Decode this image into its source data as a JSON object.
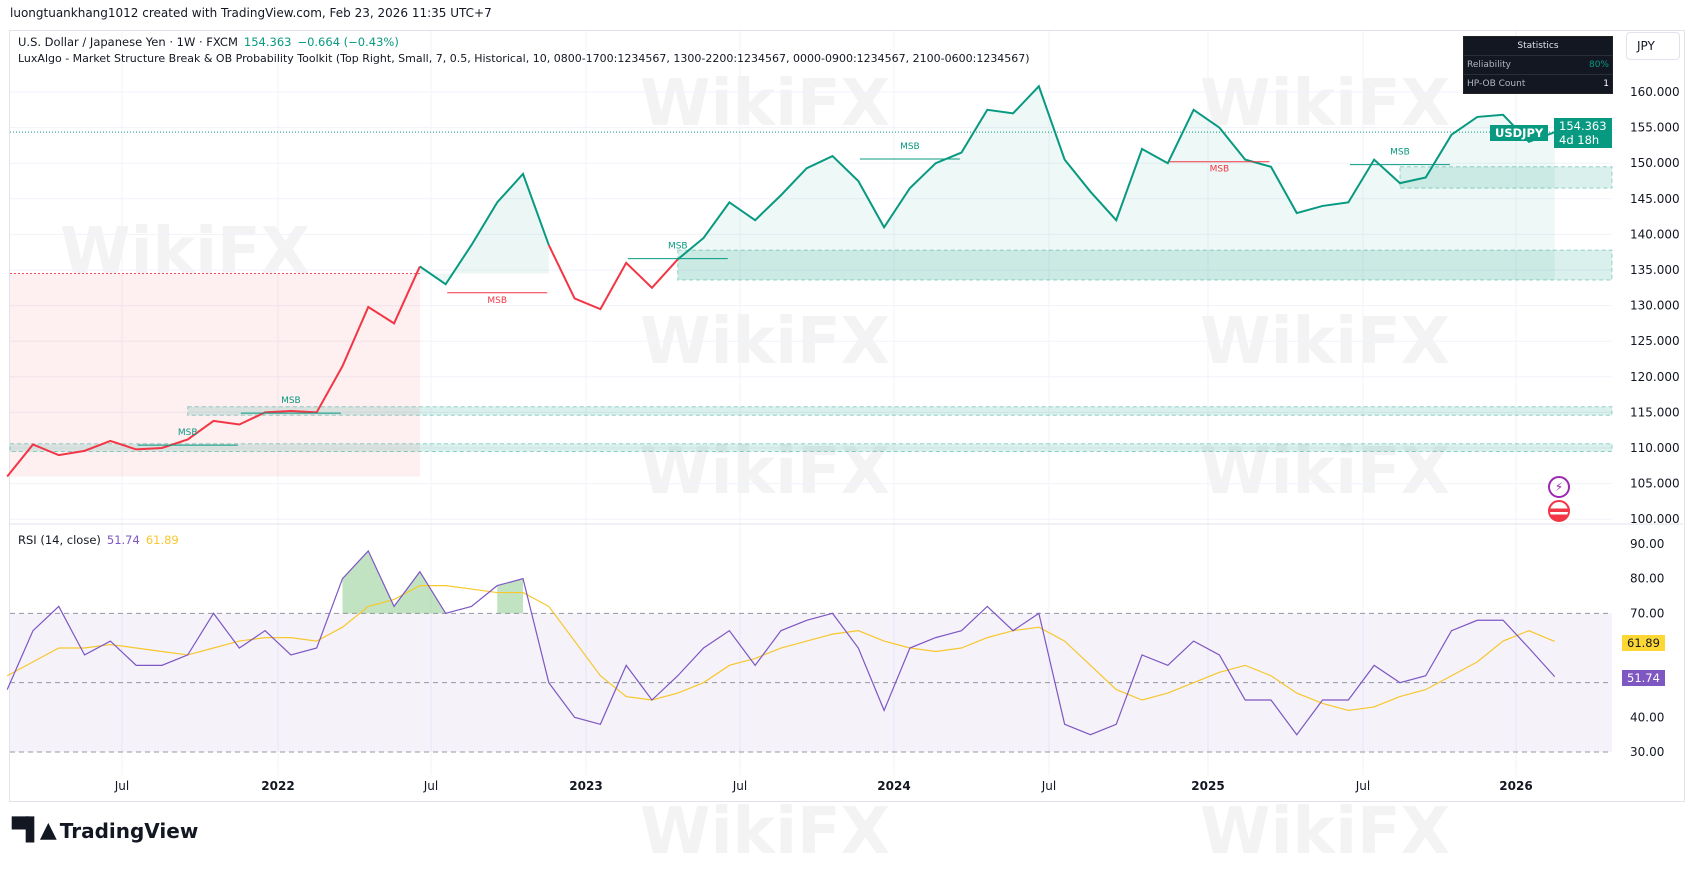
{
  "header": {
    "credit": "luongtuankhang1012 created with TradingView.com, Feb 23, 2026 11:35 UTC+7"
  },
  "legend": {
    "symbol_line": "U.S. Dollar / Japanese Yen · 1W · FXCM",
    "last": "154.363",
    "change": "−0.664 (−0.43%)",
    "indicator": "LuxAlgo - Market Structure Break & OB Probability Toolkit (Top Right, Small, 7, 0.5, Historical, 10, 0800-1700:1234567, 1300-2200:1234567, 0000-0900:1234567, 2100-0600:1234567)"
  },
  "statistics": {
    "title": "Statistics",
    "rows": [
      {
        "label": "Reliability",
        "value": "80%"
      },
      {
        "label": "HP-OB Count",
        "value": "1"
      }
    ]
  },
  "currency_button": "JPY",
  "price_tag": {
    "symbol": "USDJPY",
    "price": "154.363",
    "countdown": "4d 18h"
  },
  "rsi_legend": {
    "label": "RSI (14, close)",
    "rsi": "51.74",
    "ma": "61.89"
  },
  "rsi_tags": {
    "rsi": "51.74",
    "ma": "61.89"
  },
  "brand": "TradingView",
  "watermark": "WikiFX",
  "colors": {
    "bull": "#089981",
    "bear": "#f23645",
    "rsi": "#7e57c2",
    "rsi_ma": "#f7c72d"
  },
  "chart_data": [
    {
      "type": "line",
      "title": "U.S. Dollar / Japanese Yen · 1W · FXCM",
      "y_ticks": [
        "160.000",
        "155.000",
        "150.000",
        "145.000",
        "140.000",
        "135.000",
        "130.000",
        "125.000",
        "120.000",
        "115.000",
        "110.000",
        "105.000",
        "100.000"
      ],
      "ylim": [
        100,
        162
      ],
      "x_ticks": [
        "Jul",
        "2022",
        "Jul",
        "2023",
        "Jul",
        "2024",
        "Jul",
        "2025",
        "Jul",
        "2026"
      ],
      "dates": [
        "2021-02",
        "2021-03",
        "2021-04",
        "2021-05",
        "2021-06",
        "2021-07",
        "2021-08",
        "2021-09",
        "2021-10",
        "2021-11",
        "2021-12",
        "2022-01",
        "2022-02",
        "2022-03",
        "2022-04",
        "2022-05",
        "2022-06",
        "2022-07",
        "2022-08",
        "2022-09",
        "2022-10",
        "2022-11",
        "2022-12",
        "2023-01",
        "2023-02",
        "2023-03",
        "2023-04",
        "2023-05",
        "2023-06",
        "2023-07",
        "2023-08",
        "2023-09",
        "2023-10",
        "2023-11",
        "2023-12",
        "2024-01",
        "2024-02",
        "2024-03",
        "2024-04",
        "2024-05",
        "2024-06",
        "2024-07",
        "2024-08",
        "2024-09",
        "2024-10",
        "2024-11",
        "2024-12",
        "2025-01",
        "2025-02",
        "2025-03",
        "2025-04",
        "2025-05",
        "2025-06",
        "2025-07",
        "2025-08",
        "2025-09",
        "2025-10",
        "2025-11",
        "2025-12",
        "2026-01",
        "2026-02"
      ],
      "values": [
        106.0,
        110.5,
        109.0,
        109.6,
        111.0,
        109.8,
        110.0,
        111.2,
        113.8,
        113.3,
        115.0,
        115.2,
        115.0,
        121.5,
        129.8,
        127.5,
        135.5,
        133.0,
        138.5,
        144.5,
        148.5,
        138.5,
        131.0,
        129.5,
        136.0,
        132.5,
        136.5,
        139.5,
        144.5,
        142.0,
        145.5,
        149.3,
        151.0,
        147.5,
        141.0,
        146.5,
        150.0,
        151.5,
        157.5,
        157.0,
        160.8,
        150.5,
        146.0,
        142.0,
        152.0,
        150.0,
        157.5,
        155.0,
        150.5,
        149.5,
        143.0,
        144.0,
        144.5,
        150.5,
        147.2,
        148.0,
        154.0,
        156.5,
        156.8,
        153.0,
        154.363
      ],
      "trend_segments": [
        {
          "from": "2021-02",
          "to": "2022-06",
          "trend": "bear"
        },
        {
          "from": "2022-06",
          "to": "2022-11",
          "trend": "bull"
        },
        {
          "from": "2022-11",
          "to": "2023-04",
          "trend": "bear"
        },
        {
          "from": "2023-04",
          "to": "2026-02",
          "trend": "bull"
        }
      ],
      "order_blocks": [
        {
          "top": 137.8,
          "bottom": 133.6,
          "from": "2023-04",
          "color": "bull"
        },
        {
          "top": 149.5,
          "bottom": 146.5,
          "from": "2025-08",
          "color": "bull"
        },
        {
          "top": 115.8,
          "bottom": 114.6,
          "from": "2021-09",
          "color": "bull"
        },
        {
          "top": 110.6,
          "bottom": 109.5,
          "from": "2021-02",
          "color": "bull"
        }
      ],
      "bear_zone": {
        "top": 134.5,
        "from": "2021-02",
        "to": "2022-06"
      },
      "msb_labels": [
        {
          "text": "MSB",
          "date": "2021-09",
          "price": 111.8,
          "trend": "bull"
        },
        {
          "text": "MSB",
          "date": "2022-01",
          "price": 116.3,
          "trend": "bull"
        },
        {
          "text": "MSB",
          "date": "2022-09",
          "price": 130.4,
          "trend": "bear"
        },
        {
          "text": "MSB",
          "date": "2023-04",
          "price": 138.0,
          "trend": "bull"
        },
        {
          "text": "MSB",
          "date": "2024-01",
          "price": 152.0,
          "trend": "bull"
        },
        {
          "text": "MSB",
          "date": "2025-01",
          "price": 148.8,
          "trend": "bear"
        },
        {
          "text": "MSB",
          "date": "2025-08",
          "price": 151.2,
          "trend": "bull"
        }
      ],
      "last_price": 154.363
    },
    {
      "type": "line",
      "title": "RSI (14, close)",
      "y_ticks": [
        "90.00",
        "80.00",
        "70.00",
        "40.00",
        "30.00"
      ],
      "ylim": [
        25,
        92
      ],
      "bands": [
        70,
        50,
        30
      ],
      "series": [
        {
          "name": "RSI",
          "values": [
            48,
            65,
            72,
            58,
            62,
            55,
            55,
            58,
            70,
            60,
            65,
            58,
            60,
            80,
            88,
            72,
            82,
            70,
            72,
            78,
            80,
            50,
            40,
            38,
            55,
            45,
            52,
            60,
            65,
            55,
            65,
            68,
            70,
            60,
            42,
            60,
            63,
            65,
            72,
            65,
            70,
            38,
            35,
            38,
            58,
            55,
            62,
            58,
            45,
            45,
            35,
            45,
            45,
            55,
            50,
            52,
            65,
            68,
            68,
            60,
            51.74
          ]
        },
        {
          "name": "RSI-based MA",
          "values": [
            52,
            56,
            60,
            60,
            61,
            60,
            59,
            58,
            60,
            62,
            63,
            63,
            62,
            66,
            72,
            74,
            78,
            78,
            77,
            76,
            76,
            72,
            62,
            52,
            46,
            45,
            47,
            50,
            55,
            57,
            60,
            62,
            64,
            65,
            62,
            60,
            59,
            60,
            63,
            65,
            66,
            62,
            55,
            48,
            45,
            47,
            50,
            53,
            55,
            52,
            47,
            44,
            42,
            43,
            46,
            48,
            52,
            56,
            62,
            65,
            61.89
          ]
        }
      ]
    }
  ]
}
